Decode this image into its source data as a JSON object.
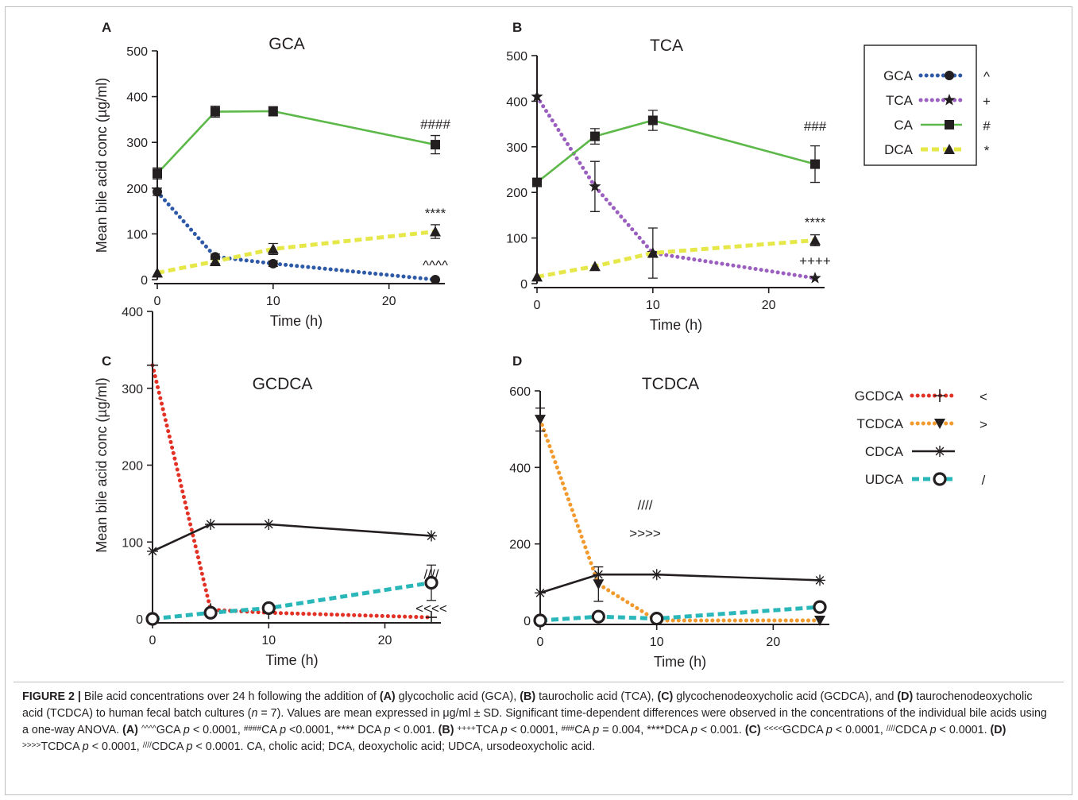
{
  "figure": {
    "caption": {
      "label": "FIGURE 2 |",
      "segments": [
        {
          "t": " Bile acid concentrations over 24 h following the addition of "
        },
        {
          "t": "(A)",
          "b": true
        },
        {
          "t": " glycocholic acid (GCA), "
        },
        {
          "t": "(B)",
          "b": true
        },
        {
          "t": " taurocholic acid (TCA), "
        },
        {
          "t": "(C)",
          "b": true
        },
        {
          "t": " glycochenodeoxycholic acid (GCDCA), and "
        },
        {
          "t": "(D)",
          "b": true
        },
        {
          "t": " taurochenodeoxycholic acid (TCDCA) to human fecal batch cultures ("
        },
        {
          "t": "n",
          "i": true
        },
        {
          "t": " = 7). Values are mean expressed in μg/ml ± SD. Significant time-dependent differences were observed in the concentrations of the individual bile acids using a one-way ANOVA. "
        },
        {
          "t": "(A)",
          "b": true
        },
        {
          "t": " "
        },
        {
          "t": "^^^^",
          "sup": true
        },
        {
          "t": "GCA "
        },
        {
          "t": "p",
          "i": true
        },
        {
          "t": " < 0.0001, "
        },
        {
          "t": "####",
          "sup": true
        },
        {
          "t": "CA "
        },
        {
          "t": "p",
          "i": true
        },
        {
          "t": " <0.0001, **** DCA "
        },
        {
          "t": "p",
          "i": true
        },
        {
          "t": " < 0.001. "
        },
        {
          "t": "(B)",
          "b": true
        },
        {
          "t": " "
        },
        {
          "t": "++++",
          "sup": true
        },
        {
          "t": "TCA "
        },
        {
          "t": "p",
          "i": true
        },
        {
          "t": " < 0.0001, "
        },
        {
          "t": "###",
          "sup": true
        },
        {
          "t": "CA "
        },
        {
          "t": "p",
          "i": true
        },
        {
          "t": " = 0.004, ****DCA "
        },
        {
          "t": "p",
          "i": true
        },
        {
          "t": " < 0.001. "
        },
        {
          "t": "(C)",
          "b": true
        },
        {
          "t": " "
        },
        {
          "t": "<<<<",
          "sup": true
        },
        {
          "t": "GCDCA "
        },
        {
          "t": "p",
          "i": true
        },
        {
          "t": " < 0.0001, "
        },
        {
          "t": "////",
          "sup": true
        },
        {
          "t": "CDCA "
        },
        {
          "t": "p",
          "i": true
        },
        {
          "t": " < 0.0001. "
        },
        {
          "t": "(D)",
          "b": true
        },
        {
          "t": " "
        },
        {
          "t": ">>>>",
          "sup": true
        },
        {
          "t": "TCDCA "
        },
        {
          "t": "p",
          "i": true
        },
        {
          "t": " < 0.0001, "
        },
        {
          "t": "////",
          "sup": true
        },
        {
          "t": "CDCA "
        },
        {
          "t": "p",
          "i": true
        },
        {
          "t": " < 0.0001. CA, cholic acid; DCA, deoxycholic acid; UDCA, ursodeoxycholic acid."
        }
      ]
    }
  },
  "legends": {
    "top": [
      {
        "name": "GCA",
        "symbol": "^"
      },
      {
        "name": "TCA",
        "symbol": "+"
      },
      {
        "name": "CA",
        "symbol": "#"
      },
      {
        "name": "DCA",
        "symbol": "*"
      }
    ],
    "bottom": [
      {
        "name": "GCDCA",
        "symbol": "<"
      },
      {
        "name": "TCDCA",
        "symbol": ">"
      },
      {
        "name": "CDCA",
        "symbol": ""
      },
      {
        "name": "UDCA",
        "symbol": "/"
      }
    ]
  },
  "chart_data": [
    {
      "panel": "A",
      "type": "line",
      "title": "GCA",
      "xlabel": "Time (h)",
      "ylabel": "Mean bile acid conc (µg/ml)",
      "xlim": [
        0,
        24
      ],
      "ylim": [
        0,
        500
      ],
      "xticks": [
        0,
        10,
        20
      ],
      "yticks": [
        0,
        100,
        200,
        300,
        400,
        500
      ],
      "x": [
        0,
        5,
        10,
        24
      ],
      "series": [
        {
          "name": "GCA",
          "color": "#2e5aa8",
          "style": "dotted",
          "marker": "circle",
          "values": [
            192,
            50,
            35,
            0
          ],
          "err": [
            8,
            6,
            6,
            0
          ]
        },
        {
          "name": "CA",
          "color": "#5cb848",
          "style": "solid",
          "marker": "square",
          "values": [
            232,
            367,
            368,
            295
          ],
          "err": [
            12,
            12,
            10,
            20
          ]
        },
        {
          "name": "DCA",
          "color": "#e6e84a",
          "style": "dashed",
          "marker": "triangle",
          "values": [
            15,
            40,
            67,
            105
          ],
          "err": [
            0,
            5,
            12,
            15
          ]
        }
      ],
      "annotations": [
        {
          "text": "####",
          "x": 24,
          "y": 330
        },
        {
          "text": "****",
          "x": 24,
          "y": 135
        },
        {
          "text": "^^^^",
          "x": 24,
          "y": 22
        }
      ]
    },
    {
      "panel": "B",
      "type": "line",
      "title": "TCA",
      "xlabel": "Time (h)",
      "ylabel": "",
      "xlim": [
        0,
        24
      ],
      "ylim": [
        0,
        500
      ],
      "xticks": [
        0,
        10,
        20
      ],
      "yticks": [
        0,
        100,
        200,
        300,
        400,
        500
      ],
      "x": [
        0,
        5,
        10,
        24
      ],
      "series": [
        {
          "name": "TCA",
          "color": "#9b5fc0",
          "style": "dotted",
          "marker": "star",
          "values": [
            410,
            213,
            67,
            12
          ],
          "err": [
            0,
            55,
            55,
            0
          ]
        },
        {
          "name": "CA",
          "color": "#5cb848",
          "style": "solid",
          "marker": "square",
          "values": [
            222,
            323,
            358,
            262
          ],
          "err": [
            0,
            17,
            22,
            40
          ]
        },
        {
          "name": "DCA",
          "color": "#e6e84a",
          "style": "dashed",
          "marker": "triangle",
          "values": [
            15,
            38,
            67,
            95
          ],
          "err": [
            0,
            0,
            0,
            12
          ]
        }
      ],
      "annotations": [
        {
          "text": "###",
          "x": 24,
          "y": 335
        },
        {
          "text": "****",
          "x": 24,
          "y": 125
        },
        {
          "text": "++++",
          "x": 24,
          "y": 40
        }
      ]
    },
    {
      "panel": "C",
      "type": "line",
      "title": "GCDCA",
      "xlabel": "Time (h)",
      "ylabel": "Mean bile acid conc (µg/ml)",
      "xlim": [
        0,
        24
      ],
      "ylim": [
        0,
        400
      ],
      "xticks": [
        0,
        10,
        20
      ],
      "yticks": [
        0,
        100,
        200,
        300,
        400
      ],
      "x": [
        0,
        5,
        10,
        24
      ],
      "series": [
        {
          "name": "GCDCA",
          "color": "#e23226",
          "style": "dotted",
          "marker": "plus",
          "values": [
            330,
            12,
            8,
            2
          ],
          "err": [
            0,
            0,
            0,
            0
          ]
        },
        {
          "name": "CDCA",
          "color": "#231f20",
          "style": "solid",
          "marker": "asterisk",
          "values": [
            88,
            123,
            123,
            108
          ],
          "err": [
            0,
            0,
            0,
            0
          ]
        },
        {
          "name": "UDCA",
          "color": "#2ab7ba",
          "style": "dashed",
          "marker": "ring",
          "values": [
            0,
            8,
            14,
            47
          ],
          "err": [
            0,
            0,
            0,
            23
          ]
        }
      ],
      "annotations": [
        {
          "text": "////",
          "x": 24,
          "y": 52
        },
        {
          "text": "<<<<",
          "x": 24,
          "y": 8
        }
      ]
    },
    {
      "panel": "D",
      "type": "line",
      "title": "TCDCA",
      "xlabel": "Time (h)",
      "ylabel": "",
      "xlim": [
        0,
        24
      ],
      "ylim": [
        0,
        600
      ],
      "xticks": [
        0,
        10,
        20
      ],
      "yticks": [
        0,
        200,
        400,
        600
      ],
      "x": [
        0,
        5,
        10,
        24
      ],
      "series": [
        {
          "name": "TCDCA",
          "color": "#f29a2e",
          "style": "dotted",
          "marker": "triangle-down",
          "values": [
            525,
            95,
            0,
            0
          ],
          "err": [
            30,
            45,
            0,
            0
          ]
        },
        {
          "name": "CDCA",
          "color": "#231f20",
          "style": "solid",
          "marker": "asterisk",
          "values": [
            72,
            120,
            120,
            105
          ],
          "err": [
            0,
            0,
            0,
            0
          ]
        },
        {
          "name": "UDCA",
          "color": "#2ab7ba",
          "style": "dashed",
          "marker": "ring",
          "values": [
            0,
            10,
            5,
            35
          ],
          "err": [
            0,
            0,
            0,
            0
          ]
        }
      ],
      "annotations": [
        {
          "text": "////",
          "x": 9,
          "y": 290
        },
        {
          "text": ">>>>",
          "x": 9,
          "y": 216
        }
      ]
    }
  ]
}
